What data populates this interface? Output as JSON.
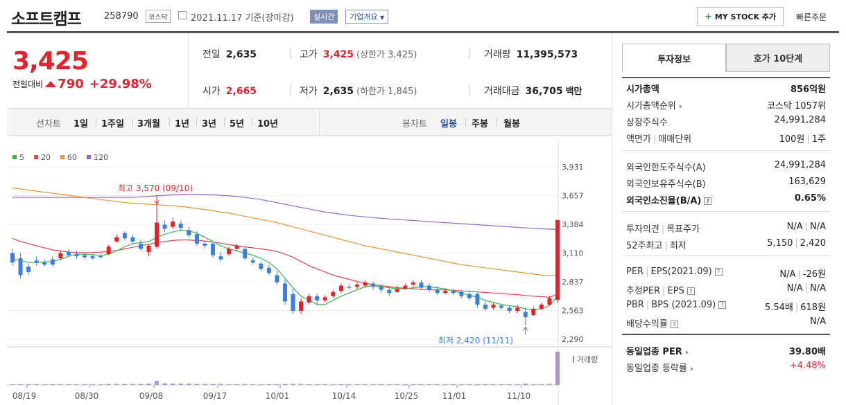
{
  "header": {
    "name": "소프트캠프",
    "code": "258790",
    "market": "코스닥",
    "date": "2021.11.17",
    "date_note": "기준(장마감)",
    "realtime": "실시간",
    "overview": "기업개요",
    "mystock": "MY STOCK 추가",
    "quick_order": "빠른주문"
  },
  "price": {
    "current": "3,425",
    "change_label": "전일대비",
    "change": "790",
    "change_pct": "+29.98%"
  },
  "stats": {
    "prev_label": "전일",
    "prev": "2,635",
    "high_label": "고가",
    "high": "3,425",
    "high_sub": "(상한가 3,425)",
    "volume_label": "거래량",
    "volume": "11,395,573",
    "open_label": "시가",
    "open": "2,665",
    "low_label": "저가",
    "low": "2,635",
    "low_sub": "(하한가 1,845)",
    "amount_label": "거래대금",
    "amount": "36,705",
    "amount_unit": "백만"
  },
  "controls": {
    "line": "선차트",
    "periods": [
      "1일",
      "1주일",
      "3개월",
      "1년",
      "3년",
      "5년",
      "10년"
    ],
    "candle": "봉차트",
    "candle_types": [
      "일봉",
      "주봉",
      "월봉"
    ]
  },
  "legend": [
    {
      "name": "5",
      "color": "#3cb44b"
    },
    {
      "name": "20",
      "color": "#e6454a"
    },
    {
      "name": "60",
      "color": "#f09035"
    },
    {
      "name": "120",
      "color": "#9966cc"
    }
  ],
  "chart_data": {
    "type": "candlestick",
    "y_ticks": [
      "3,931",
      "3,657",
      "3,384",
      "3,110",
      "2,837",
      "2,563",
      "2,290"
    ],
    "ylim": [
      2290,
      3931
    ],
    "x_ticks": [
      "08/19",
      "08/30",
      "09/08",
      "09/17",
      "10/01",
      "10/14",
      "10/25",
      "11/01",
      "11/10"
    ],
    "annotation_high": "최고 3,570 (09/10)",
    "annotation_low": "최저 2,420 (11/11)",
    "volume_label": "거래량",
    "candles": [
      [
        3110,
        3020,
        3150,
        2990
      ],
      [
        3060,
        2900,
        3110,
        2870
      ],
      [
        2980,
        2930,
        3010,
        2900
      ],
      [
        3040,
        3020,
        3080,
        2990
      ],
      [
        3020,
        3000,
        3050,
        2980
      ],
      [
        3050,
        3000,
        3080,
        2980
      ],
      [
        3060,
        3110,
        3130,
        3040
      ],
      [
        3120,
        3090,
        3150,
        3070
      ],
      [
        3100,
        3080,
        3130,
        3060
      ],
      [
        3090,
        3070,
        3110,
        3050
      ],
      [
        3080,
        3060,
        3100,
        3050
      ],
      [
        3080,
        3070,
        3110,
        3060
      ],
      [
        3100,
        3170,
        3190,
        3090
      ],
      [
        3220,
        3260,
        3290,
        3210
      ],
      [
        3300,
        3250,
        3320,
        3230
      ],
      [
        3260,
        3220,
        3290,
        3200
      ],
      [
        3200,
        3150,
        3240,
        3130
      ],
      [
        3120,
        3180,
        3200,
        3080
      ],
      [
        3170,
        3400,
        3570,
        3150
      ],
      [
        3380,
        3340,
        3420,
        3310
      ],
      [
        3360,
        3410,
        3450,
        3340
      ],
      [
        3390,
        3350,
        3420,
        3320
      ],
      [
        3330,
        3280,
        3360,
        3260
      ],
      [
        3290,
        3200,
        3320,
        3180
      ],
      [
        3200,
        3180,
        3230,
        3150
      ],
      [
        3200,
        3090,
        3220,
        3070
      ],
      [
        3080,
        3050,
        3120,
        3030
      ],
      [
        3100,
        3150,
        3170,
        3080
      ],
      [
        3150,
        3180,
        3200,
        3130
      ],
      [
        3150,
        3060,
        3170,
        3040
      ],
      [
        3040,
        3020,
        3070,
        3000
      ],
      [
        3010,
        2960,
        3030,
        2940
      ],
      [
        2970,
        2920,
        3000,
        2900
      ],
      [
        2900,
        2830,
        2940,
        2800
      ],
      [
        2820,
        2650,
        2860,
        2620
      ],
      [
        2720,
        2560,
        2770,
        2530
      ],
      [
        2560,
        2650,
        2680,
        2530
      ],
      [
        2640,
        2700,
        2720,
        2620
      ],
      [
        2700,
        2660,
        2730,
        2620
      ],
      [
        2660,
        2690,
        2710,
        2640
      ],
      [
        2700,
        2740,
        2760,
        2680
      ],
      [
        2750,
        2800,
        2820,
        2730
      ],
      [
        2790,
        2780,
        2810,
        2760
      ],
      [
        2790,
        2810,
        2830,
        2770
      ],
      [
        2800,
        2830,
        2850,
        2780
      ],
      [
        2820,
        2790,
        2840,
        2760
      ],
      [
        2790,
        2760,
        2810,
        2730
      ],
      [
        2760,
        2730,
        2790,
        2700
      ],
      [
        2740,
        2770,
        2800,
        2730
      ],
      [
        2770,
        2800,
        2820,
        2760
      ],
      [
        2810,
        2830,
        2850,
        2790
      ],
      [
        2830,
        2780,
        2850,
        2760
      ],
      [
        2800,
        2760,
        2820,
        2740
      ],
      [
        2760,
        2730,
        2790,
        2710
      ],
      [
        2730,
        2750,
        2770,
        2720
      ],
      [
        2750,
        2730,
        2770,
        2710
      ],
      [
        2740,
        2700,
        2760,
        2680
      ],
      [
        2720,
        2680,
        2740,
        2660
      ],
      [
        2720,
        2620,
        2740,
        2590
      ],
      [
        2620,
        2580,
        2650,
        2560
      ],
      [
        2590,
        2620,
        2640,
        2570
      ],
      [
        2610,
        2590,
        2630,
        2570
      ],
      [
        2590,
        2560,
        2610,
        2540
      ],
      [
        2560,
        2590,
        2620,
        2540
      ],
      [
        2550,
        2500,
        2590,
        2420
      ],
      [
        2520,
        2580,
        2600,
        2510
      ],
      [
        2580,
        2620,
        2640,
        2570
      ],
      [
        2620,
        2680,
        2700,
        2610
      ],
      [
        2665,
        3425,
        3425,
        2635
      ]
    ],
    "ma5": [
      3050,
      3040,
      3020,
      3020,
      3025,
      3030,
      3050,
      3080,
      3100,
      3100,
      3095,
      3085,
      3100,
      3130,
      3170,
      3200,
      3210,
      3220,
      3260,
      3290,
      3310,
      3330,
      3320,
      3300,
      3260,
      3220,
      3180,
      3150,
      3130,
      3110,
      3090,
      3060,
      3020,
      2960,
      2870,
      2780,
      2700,
      2660,
      2620,
      2620,
      2660,
      2700,
      2730,
      2760,
      2790,
      2800,
      2790,
      2780,
      2770,
      2770,
      2780,
      2790,
      2790,
      2780,
      2770,
      2750,
      2730,
      2710,
      2690,
      2660,
      2640,
      2620,
      2610,
      2600,
      2580,
      2570,
      2580,
      2610,
      2700
    ],
    "ma20": [
      3250,
      3220,
      3200,
      3180,
      3160,
      3140,
      3130,
      3120,
      3115,
      3115,
      3115,
      3120,
      3125,
      3135,
      3150,
      3165,
      3180,
      3195,
      3210,
      3220,
      3230,
      3235,
      3235,
      3230,
      3225,
      3215,
      3205,
      3190,
      3180,
      3170,
      3160,
      3150,
      3140,
      3125,
      3100,
      3070,
      3030,
      2990,
      2960,
      2930,
      2900,
      2880,
      2860,
      2840,
      2825,
      2810,
      2800,
      2790,
      2780,
      2775,
      2770,
      2765,
      2760,
      2760,
      2760,
      2755,
      2750,
      2745,
      2740,
      2735,
      2730,
      2725,
      2720,
      2715,
      2705,
      2700,
      2695,
      2690,
      2720
    ],
    "ma60": [
      3730,
      3720,
      3710,
      3700,
      3690,
      3680,
      3670,
      3660,
      3650,
      3640,
      3630,
      3620,
      3610,
      3600,
      3590,
      3585,
      3580,
      3575,
      3570,
      3565,
      3560,
      3555,
      3545,
      3535,
      3525,
      3515,
      3500,
      3490,
      3475,
      3460,
      3445,
      3430,
      3415,
      3400,
      3380,
      3360,
      3340,
      3320,
      3300,
      3280,
      3260,
      3240,
      3220,
      3200,
      3180,
      3165,
      3150,
      3135,
      3120,
      3105,
      3090,
      3075,
      3060,
      3045,
      3030,
      3015,
      3000,
      2990,
      2980,
      2970,
      2960,
      2950,
      2940,
      2930,
      2920,
      2910,
      2900,
      2895,
      2895
    ],
    "ma120": [
      3640,
      3640,
      3640,
      3640,
      3640,
      3640,
      3640,
      3640,
      3640,
      3640,
      3640,
      3640,
      3640,
      3640,
      3640,
      3640,
      3645,
      3650,
      3655,
      3660,
      3665,
      3668,
      3670,
      3670,
      3668,
      3665,
      3660,
      3655,
      3650,
      3640,
      3630,
      3620,
      3605,
      3590,
      3575,
      3560,
      3545,
      3530,
      3515,
      3500,
      3490,
      3480,
      3470,
      3462,
      3455,
      3448,
      3441,
      3435,
      3430,
      3425,
      3420,
      3415,
      3410,
      3405,
      3400,
      3395,
      3390,
      3385,
      3380,
      3375,
      3370,
      3365,
      3360,
      3355,
      3350,
      3346,
      3342,
      3338,
      3335
    ],
    "volume": [
      2,
      2,
      2,
      2,
      2,
      2,
      2,
      2,
      2,
      2,
      2,
      2,
      3,
      3,
      3,
      3,
      3,
      4,
      12,
      5,
      4,
      4,
      4,
      3,
      3,
      3,
      3,
      2,
      2,
      3,
      2,
      2,
      2,
      2,
      3,
      3,
      3,
      2,
      2,
      2,
      2,
      2,
      2,
      2,
      2,
      2,
      2,
      2,
      2,
      2,
      2,
      2,
      2,
      2,
      2,
      2,
      2,
      2,
      2,
      2,
      2,
      2,
      2,
      2,
      4,
      2,
      2,
      3,
      100
    ]
  },
  "panel": {
    "tab1": "투자정보",
    "tab2": "호가 10단계",
    "rows1": [
      {
        "k": "시가총액",
        "v": "856억원",
        "bold": true
      },
      {
        "k": "시가총액순위",
        "v": "코스닥 1057위",
        "tri": true
      },
      {
        "k": "상장주식수",
        "v": "24,991,284"
      },
      {
        "k": "액면가",
        "k2": "매매단위",
        "v": "100원",
        "v2": "1주"
      }
    ],
    "rows2": [
      {
        "k": "외국인한도주식수(A)",
        "v": "24,991,284"
      },
      {
        "k": "외국인보유주식수(B)",
        "v": "163,629"
      },
      {
        "k": "외국인소진율(B/A)",
        "v": "0.65%",
        "bold": true,
        "qm": true
      }
    ],
    "rows3": [
      {
        "k": "투자의견",
        "k2": "목표주가",
        "v": "N/A",
        "v2": "N/A"
      },
      {
        "k": "52주최고",
        "k2": "최저",
        "v": "5,150",
        "v2": "2,420"
      }
    ],
    "rows4": [
      {
        "k": "PER",
        "k2": "EPS(2021.09)",
        "v": "N/A",
        "v2": "-26원",
        "qm": true
      },
      {
        "k": "추정PER",
        "k2": "EPS",
        "v": "N/A",
        "v2": "N/A",
        "qm": true
      },
      {
        "k": "PBR",
        "k2": "BPS (2021.09)",
        "v": "5.54배",
        "v2": "618원",
        "qm": true
      },
      {
        "k": "배당수익률",
        "v": "N/A",
        "qm": true
      }
    ],
    "rows5": [
      {
        "k": "동일업종 PER",
        "v": "39.80배",
        "bold": true,
        "tri": true
      },
      {
        "k": "동일업종 등락률",
        "v": "+4.48%",
        "red": true,
        "tri": true
      }
    ]
  }
}
